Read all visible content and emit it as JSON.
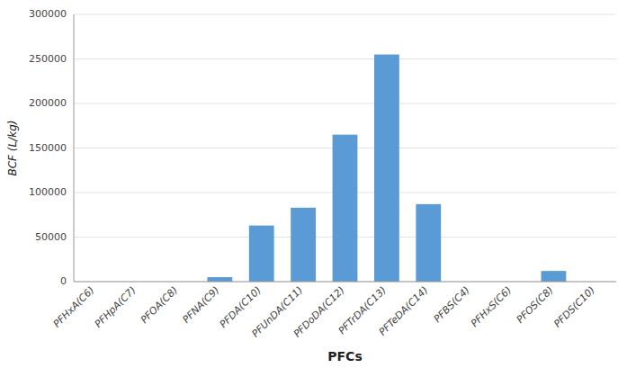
{
  "chart_data": {
    "type": "bar",
    "categories": [
      "PFHxA(C6)",
      "PFHpA(C7)",
      "PFOA(C8)",
      "PFNA(C9)",
      "PFDA(C10)",
      "PFUnDA(C11)",
      "PFDoDA(C12)",
      "PFTrDA(C13)",
      "PFTeDA(C14)",
      "PFBS(C4)",
      "PFHxS(C6)",
      "PFOS(C8)",
      "PFDS(C10)"
    ],
    "values": [
      0,
      0,
      0,
      5000,
      63000,
      83000,
      165000,
      255000,
      87000,
      0,
      0,
      12000,
      0
    ],
    "color": "#5B9BD5",
    "xlabel": "PFCs",
    "ylabel": "BCF (L/kg)",
    "ylim": [
      0,
      300000
    ],
    "yticks": [
      0,
      50000,
      100000,
      150000,
      200000,
      250000,
      300000
    ],
    "grid": true
  }
}
